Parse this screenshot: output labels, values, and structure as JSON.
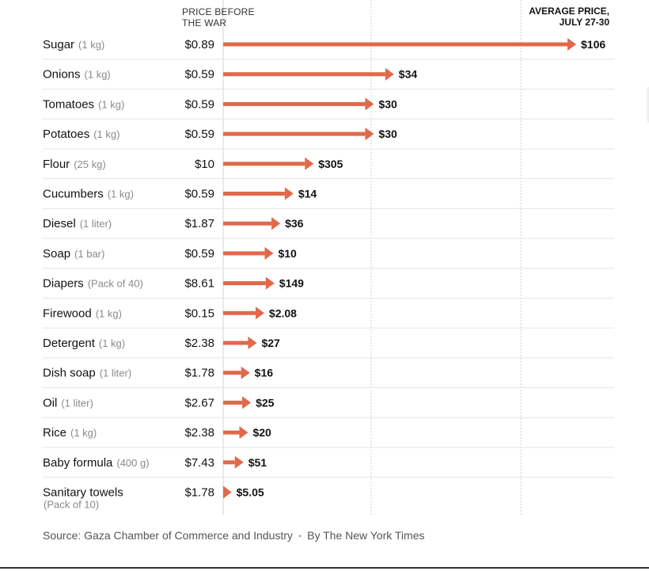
{
  "chart_data": {
    "type": "bar",
    "header_before_lines": [
      "PRICE BEFORE",
      "THE WAR"
    ],
    "header_after_lines": [
      "AVERAGE PRICE,",
      "JULY 27-30"
    ],
    "arrow_color": "#e0694b",
    "rows": [
      {
        "name": "Sugar",
        "unit": "(1 kg)",
        "before_label": "$0.89",
        "after_label": "$106",
        "before": 0.89,
        "after": 106
      },
      {
        "name": "Onions",
        "unit": "(1 kg)",
        "before_label": "$0.59",
        "after_label": "$34",
        "before": 0.59,
        "after": 34
      },
      {
        "name": "Tomatoes",
        "unit": "(1 kg)",
        "before_label": "$0.59",
        "after_label": "$30",
        "before": 0.59,
        "after": 30
      },
      {
        "name": "Potatoes",
        "unit": "(1 kg)",
        "before_label": "$0.59",
        "after_label": "$30",
        "before": 0.59,
        "after": 30
      },
      {
        "name": "Flour",
        "unit": "(25 kg)",
        "before_label": "$10",
        "after_label": "$305",
        "before": 10,
        "after": 305
      },
      {
        "name": "Cucumbers",
        "unit": "(1 kg)",
        "before_label": "$0.59",
        "after_label": "$14",
        "before": 0.59,
        "after": 14
      },
      {
        "name": "Diesel",
        "unit": "(1 liter)",
        "before_label": "$1.87",
        "after_label": "$36",
        "before": 1.87,
        "after": 36
      },
      {
        "name": "Soap",
        "unit": "(1 bar)",
        "before_label": "$0.59",
        "after_label": "$10",
        "before": 0.59,
        "after": 10
      },
      {
        "name": "Diapers",
        "unit": "(Pack of 40)",
        "before_label": "$8.61",
        "after_label": "$149",
        "before": 8.61,
        "after": 149
      },
      {
        "name": "Firewood",
        "unit": "(1 kg)",
        "before_label": "$0.15",
        "after_label": "$2.08",
        "before": 0.15,
        "after": 2.08
      },
      {
        "name": "Detergent",
        "unit": "(1 kg)",
        "before_label": "$2.38",
        "after_label": "$27",
        "before": 2.38,
        "after": 27
      },
      {
        "name": "Dish soap",
        "unit": "(1 liter)",
        "before_label": "$1.78",
        "after_label": "$16",
        "before": 1.78,
        "after": 16
      },
      {
        "name": "Oil",
        "unit": "(1 liter)",
        "before_label": "$2.67",
        "after_label": "$25",
        "before": 2.67,
        "after": 25
      },
      {
        "name": "Rice",
        "unit": "(1 kg)",
        "before_label": "$2.38",
        "after_label": "$20",
        "before": 2.38,
        "after": 20
      },
      {
        "name": "Baby formula",
        "unit": "(400 g)",
        "before_label": "$7.43",
        "after_label": "$51",
        "before": 7.43,
        "after": 51
      },
      {
        "name": "Sanitary towels",
        "unit": "(Pack of 10)",
        "before_label": "$1.78",
        "after_label": "$5.05",
        "before": 1.78,
        "after": 5.05
      }
    ]
  },
  "footer": {
    "source": "Source: Gaza Chamber of Commerce and Industry",
    "separator": "•",
    "credit": "By The New York Times"
  }
}
